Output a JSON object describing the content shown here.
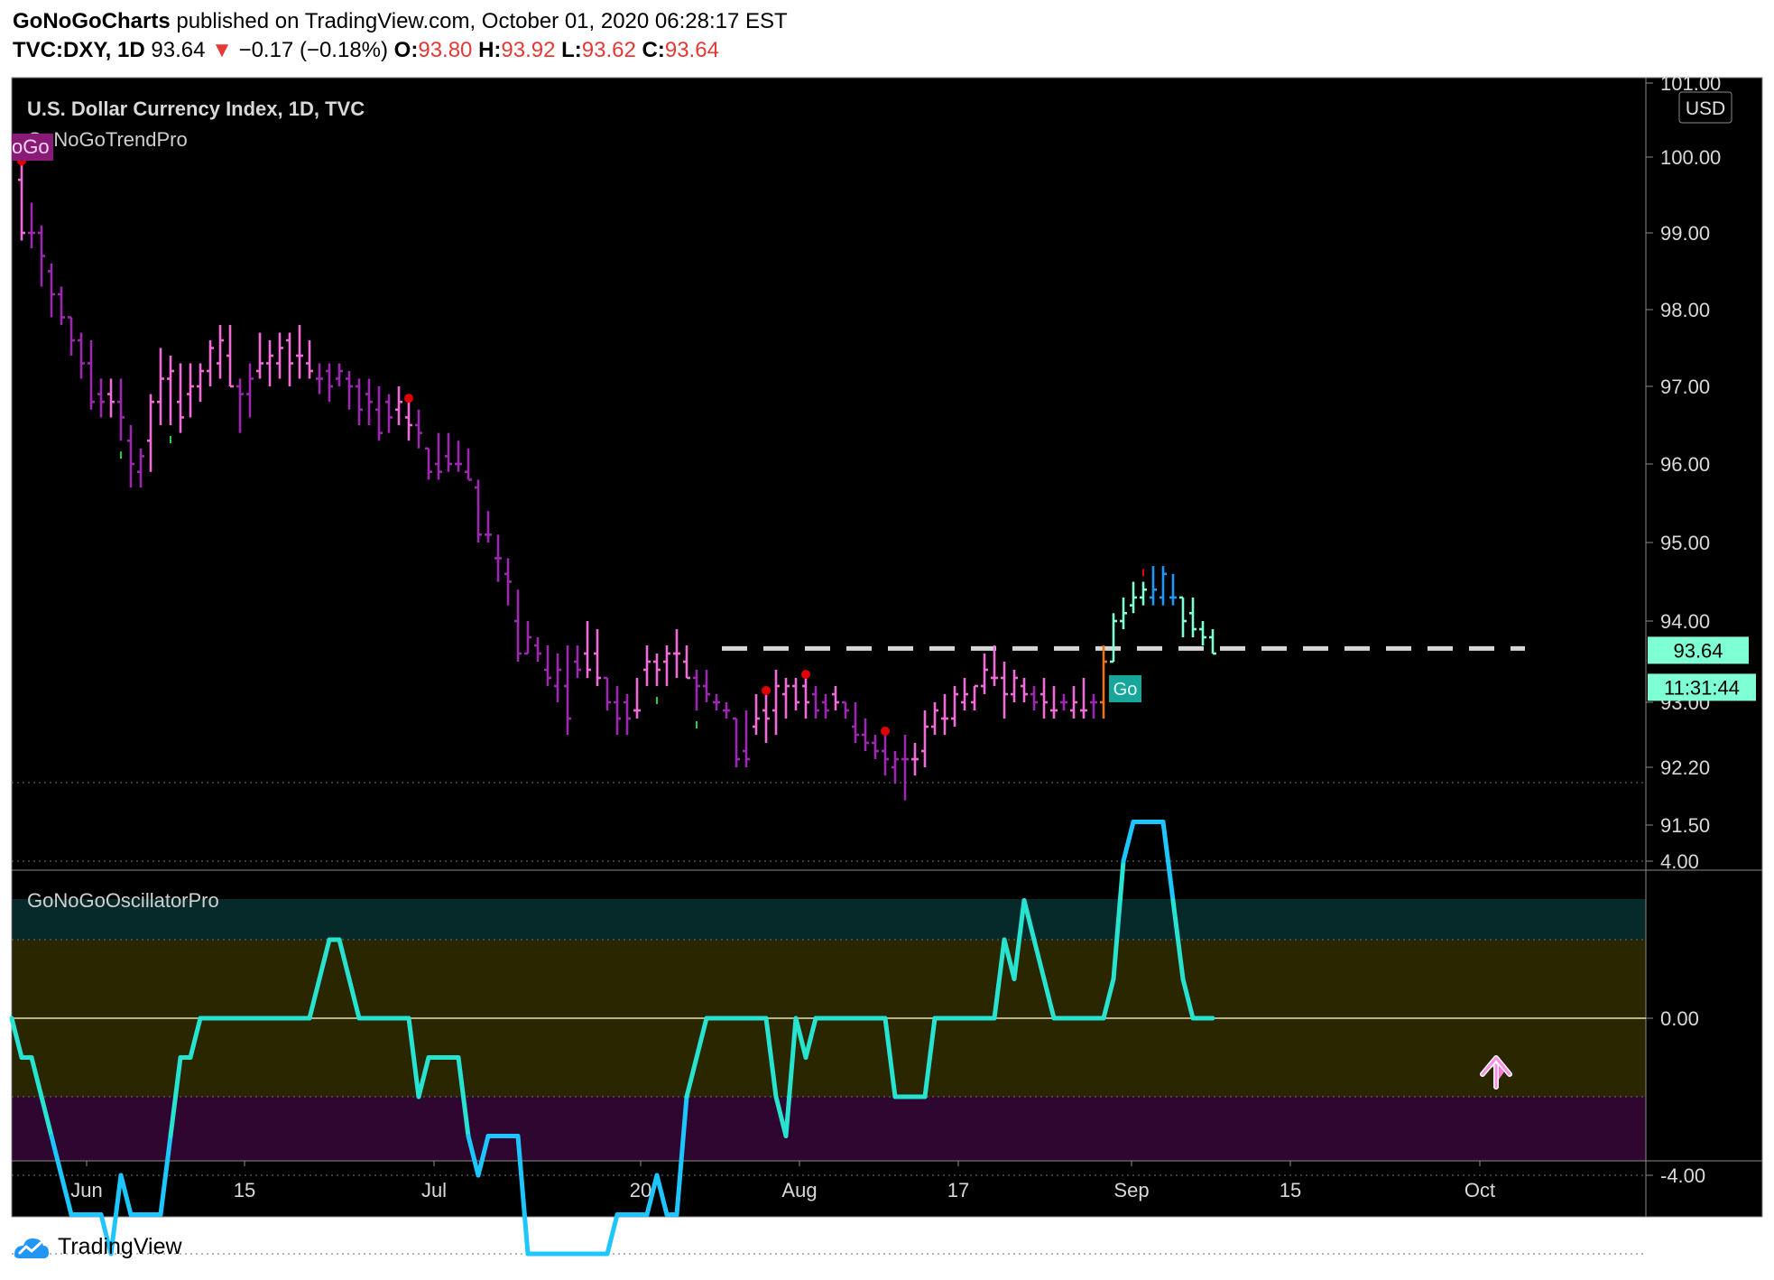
{
  "header": {
    "publisher": "GoNoGoCharts",
    "published_text": "published on TradingView.com, October 01, 2020 06:28:17 EST",
    "symbol": "TVC:DXY, 1D",
    "last": "93.64",
    "change": "−0.17 (−0.18%)",
    "o_label": "O:",
    "o_value": "93.80",
    "h_label": "H:",
    "h_value": "93.92",
    "l_label": "L:",
    "l_value": "93.62",
    "c_label": "C:",
    "c_value": "93.64"
  },
  "footer": {
    "brand": "TradingView"
  },
  "colors": {
    "background": "#000000",
    "nogo_strong": "#9c27b0",
    "nogo_weak": "#f06bd8",
    "go_weak": "#7fffd4",
    "go_strong": "#2196f3",
    "oscillator": "#27e3d0",
    "level": "#d6d6d6"
  },
  "chart_data": [
    {
      "type": "ohlc",
      "title": "U.S. Dollar Currency Index, 1D, TVC",
      "indicator": "GoNoGoTrendPro",
      "indicator_tag": "oGo",
      "currency": "USD",
      "ylim": [
        91.1,
        101.0
      ],
      "y_ticks": [
        101.0,
        100.0,
        99.0,
        98.0,
        97.0,
        96.0,
        95.0,
        94.0,
        93.0,
        92.2,
        91.5
      ],
      "x_ticks": [
        "Jun",
        "15",
        "Jul",
        "20",
        "Aug",
        "17",
        "Sep",
        "15",
        "Oct"
      ],
      "last_price_label": "93.64",
      "countdown_label": "11:31:44",
      "signal_label": "Go",
      "resistance_level": 93.64,
      "bars": [
        {
          "o": 99.7,
          "h": 99.9,
          "l": 98.9,
          "c": 99.0,
          "s": "pink"
        },
        {
          "o": 99.0,
          "h": 99.4,
          "l": 98.8,
          "c": 99.0,
          "s": "purple"
        },
        {
          "o": 99.0,
          "h": 99.1,
          "l": 98.3,
          "c": 98.7,
          "s": "purple"
        },
        {
          "o": 98.5,
          "h": 98.6,
          "l": 97.9,
          "c": 98.2,
          "s": "purple"
        },
        {
          "o": 98.2,
          "h": 98.3,
          "l": 97.8,
          "c": 97.9,
          "s": "purple"
        },
        {
          "o": 97.9,
          "h": 97.9,
          "l": 97.4,
          "c": 97.6,
          "s": "purple"
        },
        {
          "o": 97.6,
          "h": 97.7,
          "l": 97.1,
          "c": 97.3,
          "s": "purple"
        },
        {
          "o": 97.3,
          "h": 97.6,
          "l": 96.7,
          "c": 96.8,
          "s": "purple"
        },
        {
          "o": 96.9,
          "h": 97.1,
          "l": 96.6,
          "c": 96.8,
          "s": "purple"
        },
        {
          "o": 96.9,
          "h": 97.1,
          "l": 96.6,
          "c": 96.8,
          "s": "pink"
        },
        {
          "o": 96.8,
          "h": 97.1,
          "l": 96.3,
          "c": 96.6,
          "s": "purple"
        },
        {
          "o": 96.3,
          "h": 96.5,
          "l": 95.7,
          "c": 96.0,
          "s": "purple"
        },
        {
          "o": 95.9,
          "h": 96.2,
          "l": 95.7,
          "c": 96.1,
          "s": "purple"
        },
        {
          "o": 96.3,
          "h": 96.9,
          "l": 95.9,
          "c": 96.8,
          "s": "pink"
        },
        {
          "o": 96.8,
          "h": 97.5,
          "l": 96.5,
          "c": 97.1,
          "s": "pink"
        },
        {
          "o": 97.1,
          "h": 97.4,
          "l": 96.5,
          "c": 97.2,
          "s": "pink"
        },
        {
          "o": 96.8,
          "h": 97.3,
          "l": 96.4,
          "c": 96.6,
          "s": "pink"
        },
        {
          "o": 96.9,
          "h": 97.3,
          "l": 96.6,
          "c": 97.0,
          "s": "pink"
        },
        {
          "o": 97.0,
          "h": 97.3,
          "l": 96.8,
          "c": 97.2,
          "s": "pink"
        },
        {
          "o": 97.2,
          "h": 97.6,
          "l": 97.0,
          "c": 97.5,
          "s": "pink"
        },
        {
          "o": 97.3,
          "h": 97.8,
          "l": 97.1,
          "c": 97.6,
          "s": "pink"
        },
        {
          "o": 97.4,
          "h": 97.8,
          "l": 97.0,
          "c": 97.0,
          "s": "pink"
        },
        {
          "o": 97.0,
          "h": 97.1,
          "l": 96.4,
          "c": 96.9,
          "s": "purple"
        },
        {
          "o": 96.9,
          "h": 97.3,
          "l": 96.6,
          "c": 97.1,
          "s": "purple"
        },
        {
          "o": 97.2,
          "h": 97.7,
          "l": 97.1,
          "c": 97.3,
          "s": "pink"
        },
        {
          "o": 97.3,
          "h": 97.6,
          "l": 97.0,
          "c": 97.4,
          "s": "pink"
        },
        {
          "o": 97.3,
          "h": 97.7,
          "l": 97.1,
          "c": 97.5,
          "s": "pink"
        },
        {
          "o": 97.6,
          "h": 97.7,
          "l": 97.0,
          "c": 97.3,
          "s": "pink"
        },
        {
          "o": 97.4,
          "h": 97.8,
          "l": 97.1,
          "c": 97.4,
          "s": "pink"
        },
        {
          "o": 97.3,
          "h": 97.6,
          "l": 97.1,
          "c": 97.2,
          "s": "pink"
        },
        {
          "o": 97.1,
          "h": 97.3,
          "l": 96.9,
          "c": 97.1,
          "s": "purple"
        },
        {
          "o": 97.2,
          "h": 97.3,
          "l": 96.8,
          "c": 97.0,
          "s": "purple"
        },
        {
          "o": 97.1,
          "h": 97.3,
          "l": 97.0,
          "c": 97.2,
          "s": "purple"
        },
        {
          "o": 97.1,
          "h": 97.2,
          "l": 96.7,
          "c": 97.0,
          "s": "purple"
        },
        {
          "o": 97.0,
          "h": 97.1,
          "l": 96.5,
          "c": 96.7,
          "s": "purple"
        },
        {
          "o": 96.9,
          "h": 97.1,
          "l": 96.5,
          "c": 96.8,
          "s": "purple"
        },
        {
          "o": 96.7,
          "h": 97.0,
          "l": 96.3,
          "c": 96.4,
          "s": "purple"
        },
        {
          "o": 96.8,
          "h": 96.9,
          "l": 96.4,
          "c": 96.6,
          "s": "purple"
        },
        {
          "o": 96.7,
          "h": 97.0,
          "l": 96.5,
          "c": 96.8,
          "s": "pink"
        },
        {
          "o": 96.6,
          "h": 96.8,
          "l": 96.3,
          "c": 96.5,
          "s": "pink"
        },
        {
          "o": 96.5,
          "h": 96.7,
          "l": 96.2,
          "c": 96.4,
          "s": "purple"
        },
        {
          "o": 96.2,
          "h": 96.2,
          "l": 95.8,
          "c": 95.9,
          "s": "purple"
        },
        {
          "o": 96.0,
          "h": 96.4,
          "l": 95.8,
          "c": 95.9,
          "s": "purple"
        },
        {
          "o": 96.1,
          "h": 96.4,
          "l": 95.9,
          "c": 96.0,
          "s": "purple"
        },
        {
          "o": 96.0,
          "h": 96.3,
          "l": 95.9,
          "c": 96.0,
          "s": "purple"
        },
        {
          "o": 95.9,
          "h": 96.2,
          "l": 95.8,
          "c": 95.8,
          "s": "purple"
        },
        {
          "o": 95.7,
          "h": 95.8,
          "l": 95.0,
          "c": 95.1,
          "s": "purple"
        },
        {
          "o": 95.1,
          "h": 95.4,
          "l": 95.0,
          "c": 95.1,
          "s": "purple"
        },
        {
          "o": 94.8,
          "h": 95.1,
          "l": 94.5,
          "c": 94.8,
          "s": "purple"
        },
        {
          "o": 94.6,
          "h": 94.8,
          "l": 94.2,
          "c": 94.5,
          "s": "purple"
        },
        {
          "o": 94.0,
          "h": 94.4,
          "l": 93.5,
          "c": 93.6,
          "s": "purple"
        },
        {
          "o": 93.6,
          "h": 94.0,
          "l": 93.6,
          "c": 93.8,
          "s": "purple"
        },
        {
          "o": 93.7,
          "h": 93.8,
          "l": 93.5,
          "c": 93.6,
          "s": "purple"
        },
        {
          "o": 93.4,
          "h": 93.7,
          "l": 93.2,
          "c": 93.3,
          "s": "purple"
        },
        {
          "o": 93.2,
          "h": 93.6,
          "l": 93.0,
          "c": 93.4,
          "s": "purple"
        },
        {
          "o": 93.2,
          "h": 93.7,
          "l": 92.6,
          "c": 92.8,
          "s": "purple"
        },
        {
          "o": 93.5,
          "h": 93.7,
          "l": 93.3,
          "c": 93.4,
          "s": "purple"
        },
        {
          "o": 93.6,
          "h": 94.0,
          "l": 93.3,
          "c": 93.4,
          "s": "pink"
        },
        {
          "o": 93.6,
          "h": 93.9,
          "l": 93.2,
          "c": 93.3,
          "s": "pink"
        },
        {
          "o": 93.3,
          "h": 93.3,
          "l": 92.9,
          "c": 93.0,
          "s": "purple"
        },
        {
          "o": 93.0,
          "h": 93.2,
          "l": 92.6,
          "c": 92.8,
          "s": "purple"
        },
        {
          "o": 93.0,
          "h": 93.1,
          "l": 92.6,
          "c": 92.8,
          "s": "purple"
        },
        {
          "o": 92.9,
          "h": 93.3,
          "l": 92.8,
          "c": 92.9,
          "s": "pink"
        },
        {
          "o": 93.4,
          "h": 93.7,
          "l": 93.2,
          "c": 93.5,
          "s": "pink"
        },
        {
          "o": 93.5,
          "h": 93.6,
          "l": 93.2,
          "c": 93.4,
          "s": "pink"
        },
        {
          "o": 93.5,
          "h": 93.7,
          "l": 93.2,
          "c": 93.6,
          "s": "pink"
        },
        {
          "o": 93.6,
          "h": 93.9,
          "l": 93.3,
          "c": 93.6,
          "s": "pink"
        },
        {
          "o": 93.5,
          "h": 93.7,
          "l": 93.3,
          "c": 93.3,
          "s": "pink"
        },
        {
          "o": 93.3,
          "h": 93.4,
          "l": 92.9,
          "c": 93.2,
          "s": "purple"
        },
        {
          "o": 93.2,
          "h": 93.4,
          "l": 93.0,
          "c": 93.1,
          "s": "purple"
        },
        {
          "o": 93.0,
          "h": 93.1,
          "l": 92.9,
          "c": 93.0,
          "s": "purple"
        },
        {
          "o": 92.9,
          "h": 93.0,
          "l": 92.8,
          "c": 92.9,
          "s": "purple"
        },
        {
          "o": 92.8,
          "h": 92.8,
          "l": 92.2,
          "c": 92.3,
          "s": "purple"
        },
        {
          "o": 92.4,
          "h": 92.9,
          "l": 92.2,
          "c": 92.3,
          "s": "purple"
        },
        {
          "o": 92.7,
          "h": 93.1,
          "l": 92.6,
          "c": 92.8,
          "s": "pink"
        },
        {
          "o": 92.9,
          "h": 93.1,
          "l": 92.5,
          "c": 92.8,
          "s": "pink"
        },
        {
          "o": 92.9,
          "h": 93.4,
          "l": 92.6,
          "c": 93.2,
          "s": "pink"
        },
        {
          "o": 93.1,
          "h": 93.3,
          "l": 92.8,
          "c": 93.2,
          "s": "pink"
        },
        {
          "o": 93.2,
          "h": 93.3,
          "l": 92.9,
          "c": 93.0,
          "s": "pink"
        },
        {
          "o": 93.2,
          "h": 93.3,
          "l": 92.8,
          "c": 93.0,
          "s": "pink"
        },
        {
          "o": 93.1,
          "h": 93.2,
          "l": 92.8,
          "c": 92.9,
          "s": "purple"
        },
        {
          "o": 93.0,
          "h": 93.1,
          "l": 92.8,
          "c": 92.9,
          "s": "purple"
        },
        {
          "o": 93.1,
          "h": 93.2,
          "l": 92.9,
          "c": 93.0,
          "s": "pink"
        },
        {
          "o": 93.0,
          "h": 93.0,
          "l": 92.8,
          "c": 92.9,
          "s": "purple"
        },
        {
          "o": 92.7,
          "h": 93.0,
          "l": 92.5,
          "c": 92.6,
          "s": "purple"
        },
        {
          "o": 92.6,
          "h": 92.8,
          "l": 92.4,
          "c": 92.5,
          "s": "purple"
        },
        {
          "o": 92.5,
          "h": 92.6,
          "l": 92.3,
          "c": 92.4,
          "s": "purple"
        },
        {
          "o": 92.4,
          "h": 92.6,
          "l": 92.1,
          "c": 92.3,
          "s": "purple"
        },
        {
          "o": 92.2,
          "h": 92.4,
          "l": 92.0,
          "c": 92.3,
          "s": "purple"
        },
        {
          "o": 92.3,
          "h": 92.6,
          "l": 91.8,
          "c": 92.3,
          "s": "purple"
        },
        {
          "o": 92.3,
          "h": 92.5,
          "l": 92.1,
          "c": 92.3,
          "s": "pink"
        },
        {
          "o": 92.4,
          "h": 92.9,
          "l": 92.2,
          "c": 92.7,
          "s": "pink"
        },
        {
          "o": 92.7,
          "h": 93.0,
          "l": 92.6,
          "c": 92.9,
          "s": "pink"
        },
        {
          "o": 92.8,
          "h": 93.1,
          "l": 92.6,
          "c": 92.8,
          "s": "pink"
        },
        {
          "o": 92.8,
          "h": 93.2,
          "l": 92.7,
          "c": 93.1,
          "s": "pink"
        },
        {
          "o": 93.0,
          "h": 93.3,
          "l": 92.9,
          "c": 93.1,
          "s": "pink"
        },
        {
          "o": 93.0,
          "h": 93.2,
          "l": 92.9,
          "c": 93.2,
          "s": "pink"
        },
        {
          "o": 93.2,
          "h": 93.6,
          "l": 93.1,
          "c": 93.4,
          "s": "pink"
        },
        {
          "o": 93.3,
          "h": 93.7,
          "l": 93.2,
          "c": 93.3,
          "s": "pink"
        },
        {
          "o": 93.3,
          "h": 93.5,
          "l": 92.8,
          "c": 93.1,
          "s": "pink"
        },
        {
          "o": 93.1,
          "h": 93.4,
          "l": 93.0,
          "c": 93.3,
          "s": "pink"
        },
        {
          "o": 93.2,
          "h": 93.3,
          "l": 93.0,
          "c": 93.1,
          "s": "pink"
        },
        {
          "o": 93.1,
          "h": 93.2,
          "l": 92.9,
          "c": 93.0,
          "s": "purple"
        },
        {
          "o": 93.1,
          "h": 93.3,
          "l": 92.8,
          "c": 93.0,
          "s": "pink"
        },
        {
          "o": 92.9,
          "h": 93.2,
          "l": 92.8,
          "c": 92.9,
          "s": "pink"
        },
        {
          "o": 93.0,
          "h": 93.1,
          "l": 92.9,
          "c": 93.0,
          "s": "purple"
        },
        {
          "o": 92.9,
          "h": 93.2,
          "l": 92.8,
          "c": 93.0,
          "s": "pink"
        },
        {
          "o": 92.9,
          "h": 93.3,
          "l": 92.8,
          "c": 92.9,
          "s": "pink"
        },
        {
          "o": 93.0,
          "h": 93.1,
          "l": 92.8,
          "c": 93.0,
          "s": "purple"
        },
        {
          "o": 93.0,
          "h": 93.7,
          "l": 92.8,
          "c": 93.5,
          "s": "orange"
        },
        {
          "o": 93.5,
          "h": 94.1,
          "l": 93.5,
          "c": 94.0,
          "s": "aqua"
        },
        {
          "o": 94.0,
          "h": 94.3,
          "l": 93.9,
          "c": 94.1,
          "s": "aqua"
        },
        {
          "o": 94.2,
          "h": 94.5,
          "l": 94.1,
          "c": 94.3,
          "s": "aqua"
        },
        {
          "o": 94.3,
          "h": 94.5,
          "l": 94.2,
          "c": 94.4,
          "s": "aqua"
        },
        {
          "o": 94.3,
          "h": 94.7,
          "l": 94.2,
          "c": 94.4,
          "s": "blue"
        },
        {
          "o": 94.3,
          "h": 94.7,
          "l": 94.2,
          "c": 94.6,
          "s": "blue"
        },
        {
          "o": 94.3,
          "h": 94.6,
          "l": 94.2,
          "c": 94.3,
          "s": "blue"
        },
        {
          "o": 94.3,
          "h": 94.3,
          "l": 93.8,
          "c": 94.0,
          "s": "aqua"
        },
        {
          "o": 94.1,
          "h": 94.3,
          "l": 93.8,
          "c": 93.9,
          "s": "aqua"
        },
        {
          "o": 93.9,
          "h": 94.0,
          "l": 93.7,
          "c": 93.8,
          "s": "aqua"
        },
        {
          "o": 93.8,
          "h": 93.9,
          "l": 93.6,
          "c": 93.6,
          "s": "aqua"
        }
      ]
    },
    {
      "type": "line",
      "title": "GoNoGoOscillatorPro",
      "ylim": [
        -7.5,
        6.5
      ],
      "y_ticks": [
        4.0,
        0.0,
        -4.0
      ],
      "values": [
        0,
        -1,
        -1,
        -2,
        -3,
        -4,
        -5,
        -5,
        -5,
        -5,
        -6,
        -4,
        -5,
        -5,
        -5,
        -5,
        -3,
        -1,
        -1,
        0,
        0,
        0,
        0,
        0,
        0,
        0,
        0,
        0,
        0,
        0,
        0,
        1,
        2,
        2,
        1,
        0,
        0,
        0,
        0,
        0,
        0,
        -2,
        -1,
        -1,
        -1,
        -1,
        -3,
        -4,
        -3,
        -3,
        -3,
        -3,
        -6,
        -6,
        -6,
        -6,
        -6,
        -6,
        -6,
        -6,
        -6,
        -5,
        -5,
        -5,
        -5,
        -4,
        -5,
        -5,
        -2,
        -1,
        0,
        0,
        0,
        0,
        0,
        0,
        0,
        -2,
        -3,
        0,
        -1,
        0,
        0,
        0,
        0,
        0,
        0,
        0,
        0,
        -2,
        -2,
        -2,
        -2,
        0,
        0,
        0,
        0,
        0,
        0,
        0,
        2,
        1,
        3,
        2,
        1,
        0,
        0,
        0,
        0,
        0,
        0,
        1,
        4,
        5,
        5,
        5,
        5,
        3,
        1,
        0,
        0,
        0
      ]
    }
  ]
}
